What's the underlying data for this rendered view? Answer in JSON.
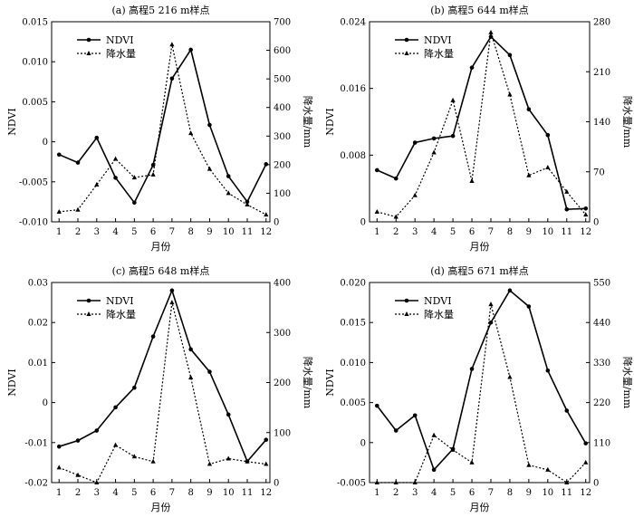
{
  "chart_data": [
    {
      "type": "line",
      "title": "(a) 高程5 216 m样点",
      "xlabel": "月份",
      "ylabel": "NDVI",
      "y2label": "降水量/mm",
      "x": [
        1,
        2,
        3,
        4,
        5,
        6,
        7,
        8,
        9,
        10,
        11,
        12
      ],
      "ylim": [
        -0.01,
        0.015
      ],
      "yticks": [
        -0.01,
        -0.005,
        0,
        0.005,
        0.01,
        0.015
      ],
      "ytick_labels": [
        "-0.010",
        "-0.005",
        "0",
        "0.005",
        "0.010",
        "0.015"
      ],
      "y2lim": [
        0,
        700
      ],
      "y2ticks": [
        0,
        100,
        200,
        300,
        400,
        500,
        600,
        700
      ],
      "y2tick_labels": [
        "0",
        "100",
        "200",
        "300",
        "400",
        "500",
        "600",
        "700"
      ],
      "legend_position": "top-left",
      "series": [
        {
          "name": "NDVI",
          "axis": "left",
          "style": "solid",
          "marker": "circle",
          "values": [
            -0.0016,
            -0.0026,
            0.0005,
            -0.0045,
            -0.0076,
            -0.0029,
            0.0079,
            0.0115,
            0.0021,
            -0.0043,
            -0.0075,
            -0.0028
          ]
        },
        {
          "name": "降水量",
          "axis": "right",
          "style": "dotted",
          "marker": "triangle",
          "values": [
            35,
            42,
            130,
            220,
            155,
            165,
            620,
            310,
            185,
            100,
            60,
            25
          ]
        }
      ]
    },
    {
      "type": "line",
      "title": "(b) 高程5 644 m样点",
      "xlabel": "月份",
      "ylabel": "NDVI",
      "y2label": "降水量/mm",
      "x": [
        1,
        2,
        3,
        4,
        5,
        6,
        7,
        8,
        9,
        10,
        11,
        12
      ],
      "ylim": [
        0,
        0.024
      ],
      "yticks": [
        0,
        0.008,
        0.016,
        0.024
      ],
      "ytick_labels": [
        "0",
        "0.008",
        "0.016",
        "0.024"
      ],
      "y2lim": [
        0,
        280
      ],
      "y2ticks": [
        0,
        70,
        140,
        210,
        280
      ],
      "y2tick_labels": [
        "0",
        "70",
        "140",
        "210",
        "280"
      ],
      "legend_position": "top-left",
      "series": [
        {
          "name": "NDVI",
          "axis": "left",
          "style": "solid",
          "marker": "circle",
          "values": [
            0.0062,
            0.0052,
            0.0095,
            0.01,
            0.0103,
            0.0185,
            0.0222,
            0.02,
            0.0135,
            0.0104,
            0.0015,
            0.0016
          ]
        },
        {
          "name": "降水量",
          "axis": "right",
          "style": "dotted",
          "marker": "triangle",
          "values": [
            14,
            7,
            37,
            97,
            170,
            57,
            265,
            178,
            65,
            76,
            42,
            10
          ]
        }
      ]
    },
    {
      "type": "line",
      "title": "(c) 高程5 648 m样点",
      "xlabel": "月份",
      "ylabel": "NDVI",
      "y2label": "降水量/mm",
      "x": [
        1,
        2,
        3,
        4,
        5,
        6,
        7,
        8,
        9,
        10,
        11,
        12
      ],
      "ylim": [
        -0.02,
        0.03
      ],
      "yticks": [
        -0.02,
        -0.01,
        0,
        0.01,
        0.02,
        0.03
      ],
      "ytick_labels": [
        "-0.02",
        "-0.01",
        "0",
        "0.01",
        "0.02",
        "0.03"
      ],
      "y2lim": [
        0,
        400
      ],
      "y2ticks": [
        0,
        100,
        200,
        300,
        400
      ],
      "y2tick_labels": [
        "0",
        "100",
        "200",
        "300",
        "400"
      ],
      "legend_position": "top-left",
      "series": [
        {
          "name": "NDVI",
          "axis": "left",
          "style": "solid",
          "marker": "circle",
          "values": [
            -0.011,
            -0.0095,
            -0.007,
            -0.0012,
            0.0037,
            0.0165,
            0.028,
            0.0133,
            0.0077,
            -0.003,
            -0.0147,
            -0.0093
          ]
        },
        {
          "name": "降水量",
          "axis": "right",
          "style": "dotted",
          "marker": "triangle",
          "values": [
            30,
            15,
            0,
            75,
            52,
            42,
            360,
            210,
            37,
            48,
            42,
            37
          ]
        }
      ]
    },
    {
      "type": "line",
      "title": "(d) 高程5 671 m样点",
      "xlabel": "月份",
      "ylabel": "NDVI",
      "y2label": "降水量/mm",
      "x": [
        1,
        2,
        3,
        4,
        5,
        6,
        7,
        8,
        9,
        10,
        11,
        12
      ],
      "ylim": [
        -0.005,
        0.02
      ],
      "yticks": [
        -0.005,
        0,
        0.005,
        0.01,
        0.015,
        0.02
      ],
      "ytick_labels": [
        "-0.005",
        "0",
        "0.005",
        "0.010",
        "0.015",
        "0.020"
      ],
      "y2lim": [
        0,
        550
      ],
      "y2ticks": [
        0,
        110,
        220,
        330,
        440,
        550
      ],
      "y2tick_labels": [
        "0",
        "110",
        "220",
        "330",
        "440",
        "550"
      ],
      "legend_position": "top-left",
      "series": [
        {
          "name": "NDVI",
          "axis": "left",
          "style": "solid",
          "marker": "circle",
          "values": [
            0.0046,
            0.0015,
            0.0034,
            -0.0034,
            -0.0008,
            0.0092,
            0.015,
            0.019,
            0.017,
            0.009,
            0.004,
            -0.0001
          ]
        },
        {
          "name": "降水量",
          "axis": "right",
          "style": "dotted",
          "marker": "triangle",
          "values": [
            0,
            0,
            0,
            130,
            90,
            55,
            490,
            290,
            48,
            35,
            0,
            55
          ]
        }
      ]
    }
  ]
}
